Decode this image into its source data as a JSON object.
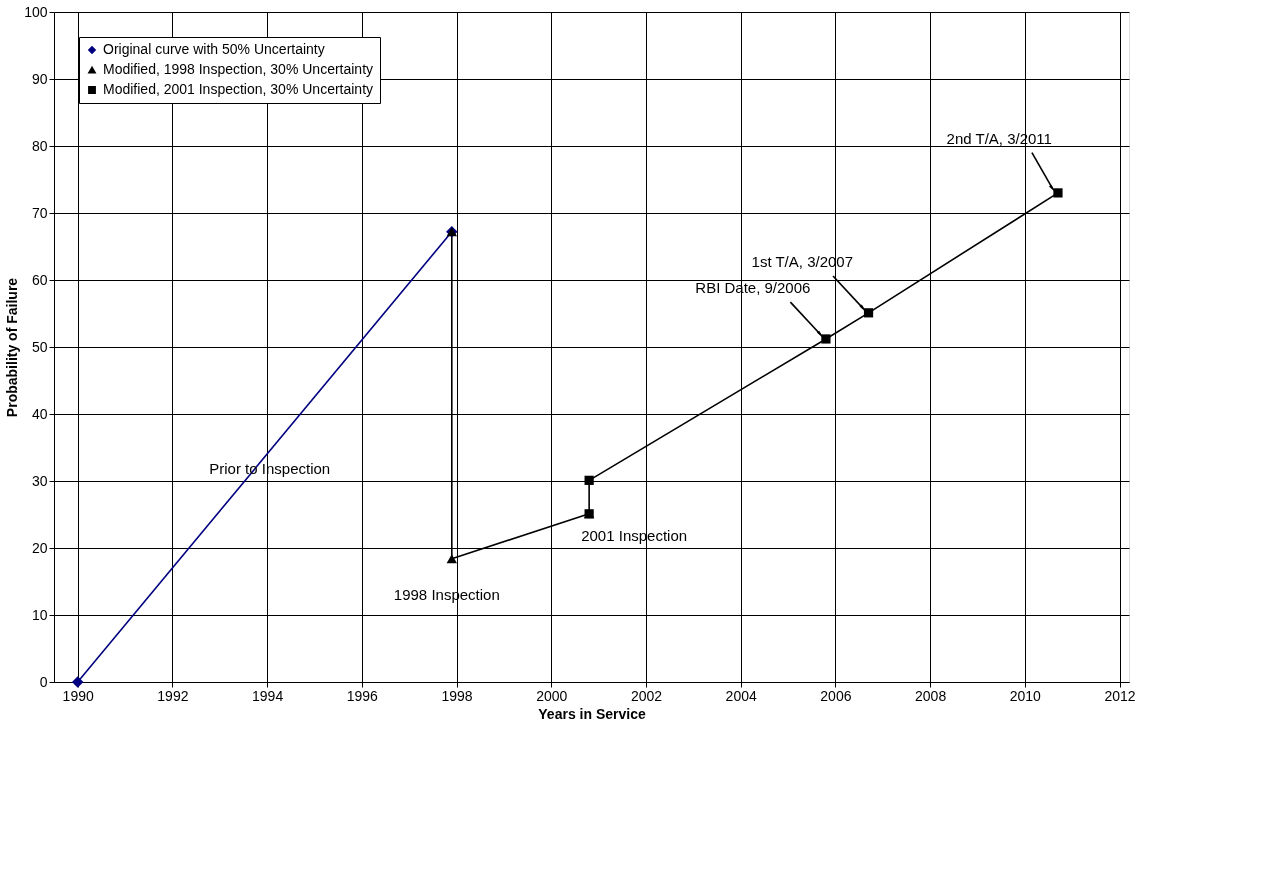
{
  "chart_data": {
    "type": "line",
    "xlabel": "Years in Service",
    "ylabel": "Probability of Failure",
    "series": [
      {
        "name": "Original curve with 50% Uncertainty",
        "color": "#000080",
        "marker": "diamond",
        "x": [
          1990,
          1997.9
        ],
        "values": [
          0,
          67.2
        ]
      },
      {
        "name": "Modified, 1998 Inspection, 30% Uncertainty",
        "color": "#000000",
        "marker": "triangle",
        "x": [
          1997.9,
          1997.9,
          2000.8
        ],
        "values": [
          67.2,
          18.4,
          25.1
        ]
      },
      {
        "name": "Modified, 2001 Inspection, 30% Uncertainty",
        "color": "#000000",
        "marker": "square",
        "x": [
          2000.8,
          2000.8,
          2005.8,
          2006.7,
          2010.7
        ],
        "values": [
          25.1,
          30.1,
          51.2,
          55.1,
          73.0
        ]
      }
    ],
    "annotations": [
      "Prior to Inspection",
      {
        "text": "1998 Inspection",
        "x": 1997.9,
        "y": 18.4
      },
      {
        "text": "2001 Inspection",
        "x": 2000.8,
        "y": 25.1
      },
      {
        "text": "RBI Date, 9/2006",
        "x": 2005.8,
        "y": 51.2
      },
      {
        "text": "1st T/A, 3/2007",
        "x": 2006.7,
        "y": 55.1
      },
      {
        "text": "2nd T/A, 3/2011",
        "x": 2010.7,
        "y": 73.0
      }
    ],
    "xlim": [
      1989.5,
      2012.2
    ],
    "xticks": [
      1990,
      1992,
      1994,
      1996,
      1998,
      2000,
      2002,
      2004,
      2006,
      2008,
      2010,
      2012
    ],
    "ylim": [
      0,
      100
    ],
    "yticks": [
      0,
      10,
      20,
      30,
      40,
      50,
      60,
      70,
      80,
      90,
      100
    ],
    "grid": true,
    "legend": "top left",
    "line_style": "solid"
  }
}
